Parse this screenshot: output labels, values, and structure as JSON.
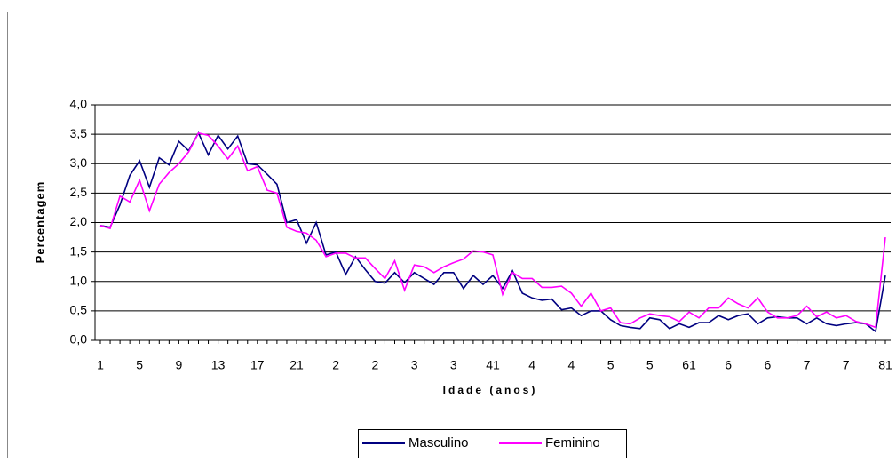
{
  "chart_data": {
    "type": "line",
    "y_label": "Percentagem",
    "x_label": "Idade (anos)",
    "categories": [
      "1",
      null,
      null,
      null,
      "5",
      null,
      null,
      null,
      "9",
      null,
      null,
      null,
      "13",
      null,
      null,
      null,
      "17",
      null,
      null,
      null,
      "21",
      null,
      null,
      null,
      "2",
      null,
      null,
      null,
      "2",
      null,
      null,
      null,
      "3",
      null,
      null,
      null,
      "3",
      null,
      null,
      null,
      "41",
      null,
      null,
      null,
      "4",
      null,
      null,
      null,
      "4",
      null,
      null,
      null,
      "5",
      null,
      null,
      null,
      "5",
      null,
      null,
      null,
      "61",
      null,
      null,
      null,
      "6",
      null,
      null,
      null,
      "6",
      null,
      null,
      null,
      "7",
      null,
      null,
      null,
      "7",
      null,
      null,
      null,
      "81"
    ],
    "series": [
      {
        "name": "Masculino",
        "color": "#000080",
        "values": [
          1.95,
          1.92,
          2.3,
          2.8,
          3.05,
          2.6,
          3.1,
          2.98,
          3.38,
          3.22,
          3.52,
          3.15,
          3.48,
          3.25,
          3.47,
          3.0,
          2.98,
          2.82,
          2.65,
          2.0,
          2.05,
          1.65,
          2.0,
          1.45,
          1.5,
          1.12,
          1.42,
          1.2,
          1.0,
          0.97,
          1.15,
          0.98,
          1.15,
          1.05,
          0.95,
          1.15,
          1.15,
          0.88,
          1.1,
          0.95,
          1.1,
          0.88,
          1.18,
          0.8,
          0.72,
          0.68,
          0.7,
          0.52,
          0.55,
          0.42,
          0.5,
          0.5,
          0.35,
          0.25,
          0.22,
          0.2,
          0.38,
          0.35,
          0.2,
          0.28,
          0.22,
          0.3,
          0.3,
          0.42,
          0.35,
          0.42,
          0.45,
          0.28,
          0.38,
          0.4,
          0.38,
          0.38,
          0.28,
          0.38,
          0.28,
          0.25,
          0.28,
          0.3,
          0.28,
          0.15,
          1.1
        ]
      },
      {
        "name": "Feminino",
        "color": "#ff00ff",
        "values": [
          1.95,
          1.9,
          2.45,
          2.35,
          2.72,
          2.2,
          2.65,
          2.85,
          3.0,
          3.2,
          3.52,
          3.48,
          3.3,
          3.08,
          3.3,
          2.88,
          2.95,
          2.55,
          2.5,
          1.92,
          1.85,
          1.82,
          1.7,
          1.42,
          1.48,
          1.48,
          1.4,
          1.4,
          1.22,
          1.05,
          1.35,
          0.85,
          1.28,
          1.25,
          1.15,
          1.25,
          1.32,
          1.38,
          1.52,
          1.5,
          1.45,
          0.78,
          1.15,
          1.05,
          1.05,
          0.9,
          0.9,
          0.92,
          0.8,
          0.58,
          0.8,
          0.5,
          0.55,
          0.3,
          0.28,
          0.38,
          0.45,
          0.42,
          0.4,
          0.32,
          0.48,
          0.38,
          0.55,
          0.55,
          0.72,
          0.62,
          0.55,
          0.72,
          0.48,
          0.38,
          0.38,
          0.42,
          0.58,
          0.4,
          0.48,
          0.38,
          0.42,
          0.32,
          0.28,
          0.22,
          1.75
        ]
      }
    ],
    "ylim": [
      0,
      4
    ],
    "yticks": [
      {
        "value": 0,
        "label": "0,0"
      },
      {
        "value": 0.5,
        "label": "0,5"
      },
      {
        "value": 1,
        "label": "1,0"
      },
      {
        "value": 1.5,
        "label": "1,5"
      },
      {
        "value": 2,
        "label": "2,0"
      },
      {
        "value": 2.5,
        "label": "2,5"
      },
      {
        "value": 3,
        "label": "3,0"
      },
      {
        "value": 3.5,
        "label": "3,5"
      },
      {
        "value": 4,
        "label": "4,0"
      }
    ],
    "grid": true
  }
}
